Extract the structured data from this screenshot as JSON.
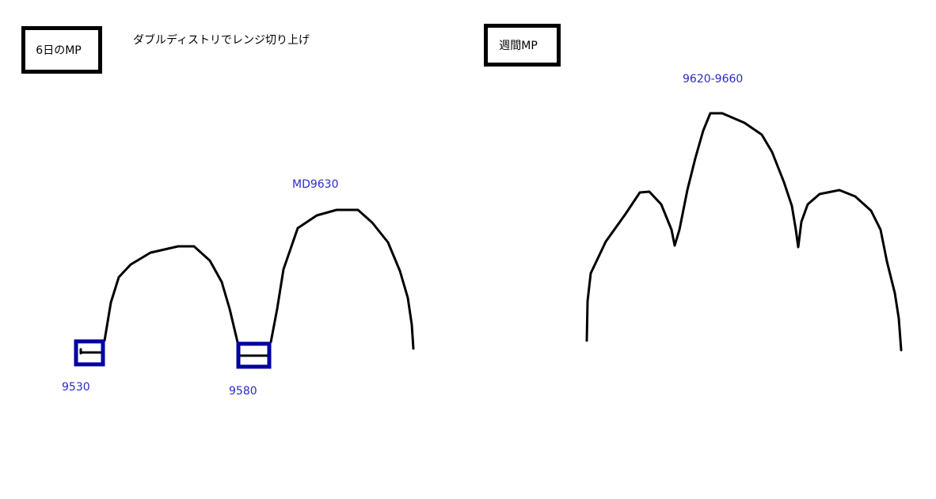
{
  "left": {
    "title": "6日のMP",
    "note": "ダブルディストリでレンジ切り上げ",
    "md_label": "MD9630",
    "low1_label": "9530",
    "low2_label": "9580"
  },
  "right": {
    "title": "週間MP",
    "range_label": "9620-9660"
  },
  "colors": {
    "stroke": "#000000",
    "box": "#0000a0",
    "label": "#2a2acc"
  }
}
